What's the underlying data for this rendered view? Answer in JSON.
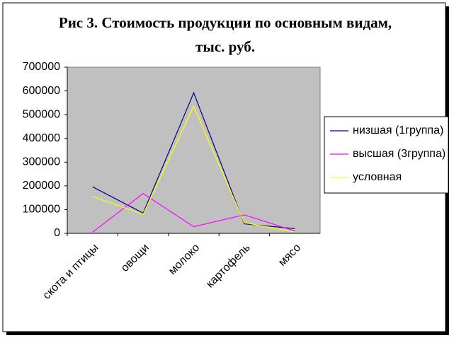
{
  "chart_data": {
    "type": "line",
    "title": [
      "Рис 3.  Стоимость продукции по основным видам,",
      "тыс. руб."
    ],
    "categories": [
      "скота и птицы",
      "овощи",
      "молоко",
      "картофель",
      "мясо"
    ],
    "series": [
      {
        "name": "низшая (1группа)",
        "color": "#000080",
        "values": [
          196000,
          85000,
          592000,
          40000,
          20000
        ]
      },
      {
        "name": "высшая (3группа)",
        "color": "#ff00ff",
        "values": [
          5000,
          168000,
          28000,
          78000,
          10000
        ]
      },
      {
        "name": "условная",
        "color": "#ffff00",
        "values": [
          155000,
          80000,
          535000,
          45000,
          5000
        ]
      }
    ],
    "ylim": [
      0,
      700000
    ],
    "yticks": [
      0,
      100000,
      200000,
      300000,
      400000,
      500000,
      600000,
      700000
    ],
    "grid": false,
    "plot_background": "#c0c0c0",
    "legend": "right"
  }
}
